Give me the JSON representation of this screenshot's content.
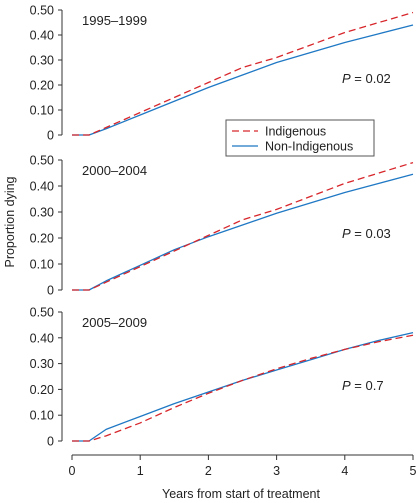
{
  "chart_data": {
    "type": "line",
    "ylabel": "Proportion dying",
    "xlabel": "Years from start of treatment",
    "x_ticks": [
      "0",
      "1",
      "2",
      "3",
      "4",
      "5"
    ],
    "xlim": [
      0,
      5
    ],
    "ylim": [
      0,
      0.5
    ],
    "y_ticks": [
      "0",
      "0.10",
      "0.20",
      "0.30",
      "0.40",
      "0.50"
    ],
    "grid": false,
    "legend": {
      "placement": "right, between top and middle panels",
      "entries": [
        {
          "name": "Indigenous",
          "color": "#d7262b",
          "style": "dashed"
        },
        {
          "name": "Non-Indigenous",
          "color": "#1f78c4",
          "style": "solid"
        }
      ]
    },
    "panels": [
      {
        "title": "1995–1999",
        "p_label": "P",
        "p_value": " = 0.02",
        "series": [
          {
            "name": "Indigenous",
            "x": [
              0,
              0.25,
              0.5,
              1,
              1.5,
              2,
              2.5,
              3,
              3.5,
              4,
              4.5,
              5
            ],
            "values": [
              0,
              0,
              0.03,
              0.09,
              0.15,
              0.21,
              0.27,
              0.31,
              0.36,
              0.41,
              0.45,
              0.49
            ]
          },
          {
            "name": "Non-Indigenous",
            "x": [
              0,
              0.25,
              0.5,
              1,
              1.5,
              2,
              2.5,
              3,
              3.5,
              4,
              4.5,
              5
            ],
            "values": [
              0,
              0,
              0.025,
              0.08,
              0.135,
              0.19,
              0.24,
              0.29,
              0.33,
              0.37,
              0.405,
              0.44
            ]
          }
        ]
      },
      {
        "title": "2000–2004",
        "p_label": "P",
        "p_value": " = 0.03",
        "series": [
          {
            "name": "Indigenous",
            "x": [
              0,
              0.25,
              0.5,
              1,
              1.5,
              2,
              2.5,
              3,
              3.5,
              4,
              4.5,
              5
            ],
            "values": [
              0,
              0,
              0.03,
              0.09,
              0.15,
              0.21,
              0.27,
              0.31,
              0.36,
              0.41,
              0.45,
              0.49
            ]
          },
          {
            "name": "Non-Indigenous",
            "x": [
              0,
              0.25,
              0.5,
              1,
              1.5,
              2,
              2.5,
              3,
              3.5,
              4,
              4.5,
              5
            ],
            "values": [
              0,
              0,
              0.035,
              0.095,
              0.155,
              0.205,
              0.25,
              0.295,
              0.335,
              0.375,
              0.41,
              0.445
            ]
          }
        ]
      },
      {
        "title": "2005–2009",
        "p_label": "P",
        "p_value": " = 0.7",
        "series": [
          {
            "name": "Indigenous",
            "x": [
              0,
              0.25,
              0.5,
              1,
              1.5,
              2,
              2.5,
              3,
              3.5,
              4,
              4.5,
              5
            ],
            "values": [
              0,
              0,
              0.02,
              0.07,
              0.13,
              0.185,
              0.235,
              0.28,
              0.32,
              0.355,
              0.385,
              0.41
            ]
          },
          {
            "name": "Non-Indigenous",
            "x": [
              0,
              0.25,
              0.5,
              1,
              1.5,
              2,
              2.5,
              3,
              3.5,
              4,
              4.5,
              5
            ],
            "values": [
              0,
              0,
              0.045,
              0.095,
              0.145,
              0.19,
              0.235,
              0.275,
              0.315,
              0.355,
              0.39,
              0.42
            ]
          }
        ]
      }
    ]
  }
}
